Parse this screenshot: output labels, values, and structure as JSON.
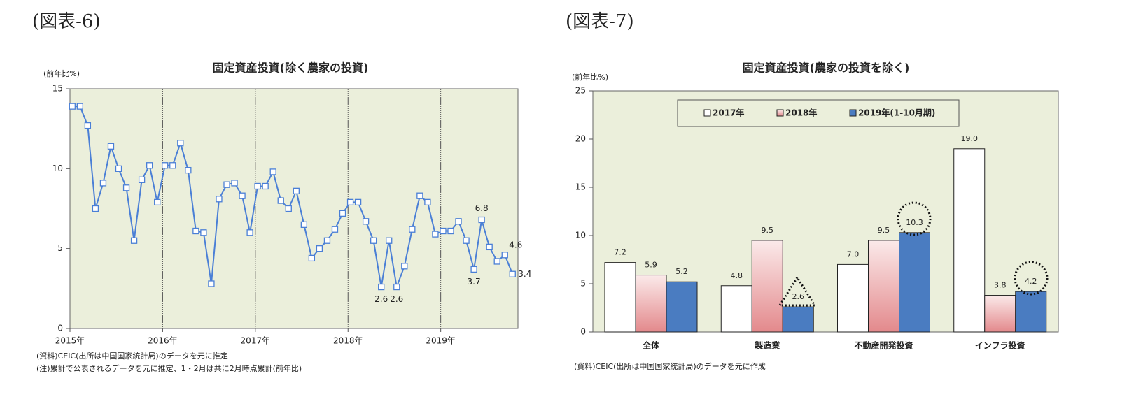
{
  "figure_labels": [
    "(図表-6)",
    "(図表-7)"
  ],
  "chart_data": [
    {
      "type": "line",
      "title": "固定資産投資(除く農家の投資)",
      "y_label": "(前年比%)",
      "categories": [
        "2015年",
        null,
        null,
        null,
        null,
        null,
        null,
        null,
        null,
        null,
        null,
        null,
        "2016年",
        null,
        null,
        null,
        null,
        null,
        null,
        null,
        null,
        null,
        null,
        null,
        "2017年",
        null,
        null,
        null,
        null,
        null,
        null,
        null,
        null,
        null,
        null,
        null,
        "2018年",
        null,
        null,
        null,
        null,
        null,
        null,
        null,
        null,
        null,
        null,
        null,
        "2019年",
        null,
        null,
        null,
        null,
        null,
        null,
        null,
        null,
        null
      ],
      "series": [
        {
          "name": "固定資産投資",
          "color": "#4a7fd6",
          "values": [
            13.9,
            13.9,
            12.7,
            7.5,
            9.1,
            11.4,
            10.0,
            8.8,
            5.5,
            9.3,
            10.2,
            7.9,
            10.2,
            10.2,
            11.6,
            9.9,
            6.1,
            6.0,
            2.8,
            8.1,
            9.0,
            9.1,
            8.3,
            6.0,
            8.9,
            8.9,
            9.8,
            8.0,
            7.5,
            8.6,
            6.5,
            4.4,
            5.0,
            5.5,
            6.2,
            7.2,
            7.9,
            7.9,
            6.7,
            5.5,
            2.6,
            5.5,
            2.6,
            3.9,
            6.2,
            8.3,
            7.9,
            5.9,
            6.1,
            6.1,
            6.7,
            5.5,
            3.7,
            6.8,
            5.1,
            4.2,
            4.6,
            3.4
          ],
          "value_labels": [
            null,
            null,
            null,
            null,
            null,
            null,
            null,
            null,
            null,
            null,
            null,
            null,
            null,
            null,
            null,
            null,
            null,
            null,
            null,
            null,
            null,
            null,
            null,
            null,
            null,
            null,
            null,
            null,
            null,
            null,
            null,
            null,
            null,
            null,
            null,
            null,
            null,
            null,
            null,
            null,
            "2.6",
            null,
            "2.6",
            null,
            null,
            null,
            null,
            null,
            null,
            null,
            null,
            null,
            "3.7",
            "6.8",
            null,
            null,
            "4.6",
            "3.4"
          ]
        }
      ],
      "ylim": [
        0,
        15
      ],
      "yticks": [
        0,
        5,
        10,
        15
      ],
      "grid": true,
      "notes": [
        "(資料)CEIC(出所は中国国家統計局)のデータを元に推定",
        "(注)累計で公表されるデータを元に推定、1・2月は共に2月時点累計(前年比)"
      ]
    },
    {
      "type": "grouped_bar",
      "title": "固定資産投資(農家の投資を除く)",
      "y_label": "(前年比%)",
      "categories": [
        "全体",
        "製造業",
        "不動産開発投資",
        "インフラ投資"
      ],
      "series": [
        {
          "name": "2017年",
          "color": "#ffffff",
          "values": [
            7.2,
            4.8,
            7.0,
            19.0
          ],
          "value_labels": [
            "7.2",
            "4.8",
            "7.0",
            "19.0"
          ]
        },
        {
          "name": "2018年",
          "color": "#eaa0a2",
          "values": [
            5.9,
            9.5,
            9.5,
            3.8
          ],
          "value_labels": [
            "5.9",
            "9.5",
            "9.5",
            "3.8"
          ]
        },
        {
          "name": "2019年(1-10月期)",
          "color": "#4a7cc1",
          "values": [
            5.2,
            2.6,
            10.3,
            4.2
          ],
          "value_labels": [
            "5.2",
            "2.6",
            "10.3",
            "4.2"
          ]
        }
      ],
      "ylim": [
        0,
        25
      ],
      "yticks": [
        0,
        5,
        10,
        15,
        20,
        25
      ],
      "legend": "top",
      "notes": [
        "(資料)CEIC(出所は中国国家統計局)のデータを元に作成"
      ]
    }
  ]
}
